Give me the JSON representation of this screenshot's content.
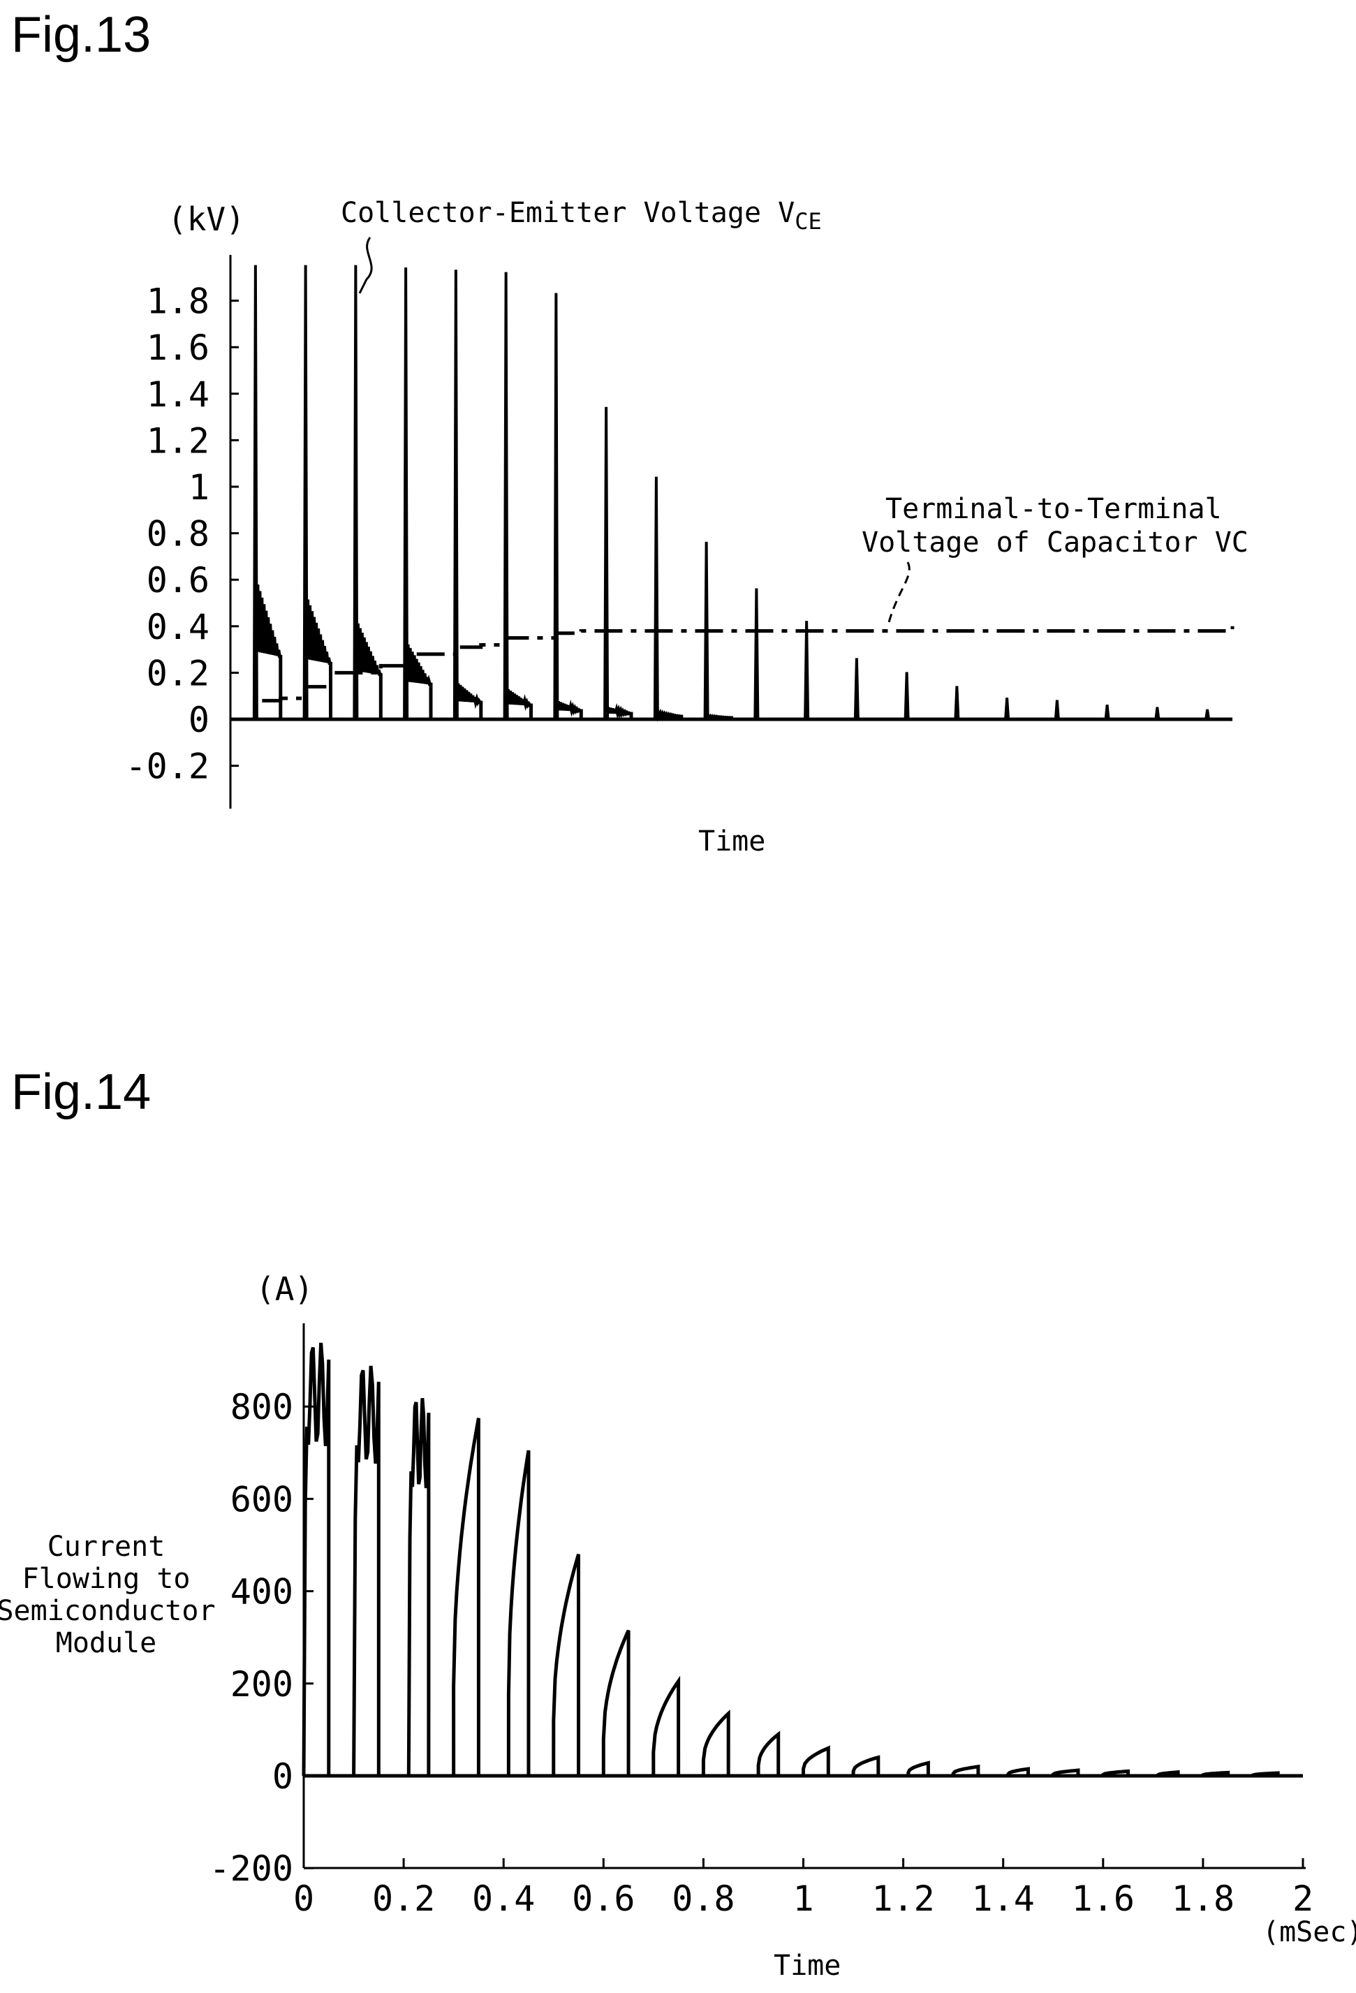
{
  "figures": [
    {
      "label": "Fig.13",
      "y_unit": "(kV)",
      "x_label": "Time",
      "annotations": {
        "vce_text": "Collector-Emitter Voltage V",
        "vce_sub": "CE",
        "vc_line1": "Terminal-to-Terminal",
        "vc_line2": "Voltage of Capacitor VC"
      }
    },
    {
      "label": "Fig.14",
      "y_unit": "(A)",
      "x_label": "Time",
      "x_unit": "(mSec)",
      "y_label_lines": [
        "Current",
        "Flowing to",
        "Semiconductor",
        "Module"
      ]
    }
  ],
  "chart_data": [
    {
      "type": "line",
      "title": "Fig.13",
      "ylabel": "(kV)",
      "xlabel": "Time",
      "ylim": [
        -0.37,
        2.0
      ],
      "ytick_labels": [
        "1.8",
        "1.6",
        "1.4",
        "1.2",
        "1",
        "0.8",
        "0.6",
        "0.4",
        "0.2",
        "0",
        "-0.2"
      ],
      "yticks": [
        1.8,
        1.6,
        1.4,
        1.2,
        1.0,
        0.8,
        0.6,
        0.4,
        0.2,
        0.0,
        -0.2
      ],
      "xlim": [
        0,
        2
      ],
      "series": [
        {
          "name": "Collector-Emitter Voltage VCE",
          "style": "solid",
          "spike_x": [
            0.05,
            0.15,
            0.25,
            0.35,
            0.45,
            0.55,
            0.65,
            0.75,
            0.85,
            0.95,
            1.05,
            1.15,
            1.25,
            1.35,
            1.45,
            1.55,
            1.65,
            1.75,
            1.85,
            1.95
          ],
          "spike_peak": [
            1.95,
            1.95,
            1.95,
            1.94,
            1.93,
            1.92,
            1.83,
            1.34,
            1.04,
            0.76,
            0.56,
            0.42,
            0.26,
            0.2,
            0.14,
            0.09,
            0.08,
            0.06,
            0.05,
            0.04
          ],
          "ringing_level": [
            0.45,
            0.4,
            0.32,
            0.25,
            0.12,
            0.1,
            0.06,
            0.04,
            0.02,
            0.01
          ]
        },
        {
          "name": "Terminal-to-Terminal Voltage of Capacitor VC",
          "style": "dash-dot",
          "x": [
            0,
            0.05,
            0.1,
            0.15,
            0.2,
            0.25,
            0.3,
            0.35,
            0.4,
            0.45,
            0.5,
            0.55,
            0.6,
            0.65,
            0.7,
            2.0
          ],
          "values": [
            0,
            0.08,
            0.09,
            0.14,
            0.2,
            0.2,
            0.23,
            0.28,
            0.28,
            0.31,
            0.32,
            0.35,
            0.35,
            0.37,
            0.38,
            0.4
          ]
        }
      ]
    },
    {
      "type": "line",
      "title": "Fig.14",
      "ylabel": "Current Flowing to Semiconductor Module",
      "yunit": "(A)",
      "xlabel": "Time",
      "xunit": "(mSec)",
      "xlim": [
        0,
        2
      ],
      "ylim": [
        -200,
        980
      ],
      "xticks": [
        0,
        0.2,
        0.4,
        0.6,
        0.8,
        1,
        1.2,
        1.4,
        1.6,
        1.8,
        2
      ],
      "xtick_labels": [
        "0",
        "0.2",
        "0.4",
        "0.6",
        "0.8",
        "1",
        "1.2",
        "1.4",
        "1.6",
        "1.8",
        "2"
      ],
      "yticks": [
        800,
        600,
        400,
        200,
        0,
        -200
      ],
      "ytick_labels": [
        "800",
        "600",
        "400",
        "200",
        "0",
        "-200"
      ],
      "series": [
        {
          "name": "Current Flowing to Semiconductor Module",
          "pulse_start": [
            0.0,
            0.1,
            0.21,
            0.3,
            0.41,
            0.5,
            0.6,
            0.7,
            0.8,
            0.91,
            1.0,
            1.1,
            1.21,
            1.3,
            1.41,
            1.5,
            1.6,
            1.71,
            1.8,
            1.9
          ],
          "pulse_end": [
            0.05,
            0.15,
            0.25,
            0.35,
            0.45,
            0.55,
            0.65,
            0.75,
            0.85,
            0.95,
            1.05,
            1.15,
            1.25,
            1.35,
            1.45,
            1.55,
            1.65,
            1.75,
            1.85,
            1.95
          ],
          "pulse_peak": [
            940,
            890,
            820,
            775,
            705,
            480,
            315,
            205,
            135,
            90,
            60,
            40,
            28,
            20,
            15,
            12,
            10,
            8,
            7,
            6
          ]
        }
      ]
    }
  ]
}
